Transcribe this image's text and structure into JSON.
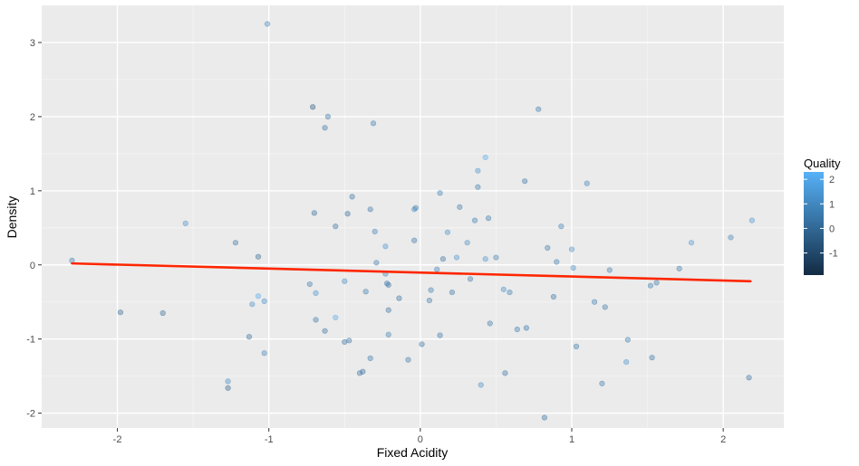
{
  "chart_data": {
    "type": "scatter",
    "title": "",
    "xlabel": "Fixed Acidity",
    "ylabel": "Density",
    "xlim": [
      -2.5,
      2.4
    ],
    "ylim": [
      -2.2,
      3.5
    ],
    "x_ticks": [
      -2,
      -1,
      0,
      1,
      2
    ],
    "y_ticks": [
      -2,
      -1,
      0,
      1,
      2,
      3
    ],
    "x_tick_labels": [
      "-2",
      "-1",
      "0",
      "1",
      "2"
    ],
    "y_tick_labels": [
      "-2",
      "-1",
      "0",
      "1",
      "2",
      "3"
    ],
    "grid": true,
    "legend": {
      "title": "Quality",
      "placement": "right",
      "range": [
        -1.9,
        2.3
      ],
      "ticks": [
        -1,
        0,
        1,
        2
      ],
      "tick_labels": [
        "-1",
        "0",
        "1",
        "2"
      ],
      "color_low": "#132b43",
      "color_high": "#56b1f7"
    },
    "trend_line": {
      "color": "#ff2600",
      "x": [
        -2.3,
        2.18
      ],
      "y": [
        0.02,
        -0.22
      ]
    },
    "points": [
      {
        "x": -2.3,
        "y": 0.06,
        "q": 0.6
      },
      {
        "x": -1.98,
        "y": -0.64,
        "q": 0.0
      },
      {
        "x": -1.7,
        "y": -0.65,
        "q": 0.1
      },
      {
        "x": -1.55,
        "y": 0.56,
        "q": 1.3
      },
      {
        "x": -1.27,
        "y": -1.57,
        "q": 1.0
      },
      {
        "x": -1.27,
        "y": -1.66,
        "q": -0.2
      },
      {
        "x": -1.22,
        "y": 0.3,
        "q": 0.4
      },
      {
        "x": -1.13,
        "y": -0.97,
        "q": 0.2
      },
      {
        "x": -1.11,
        "y": -0.53,
        "q": 1.2
      },
      {
        "x": -1.07,
        "y": 0.11,
        "q": 0.0
      },
      {
        "x": -1.07,
        "y": -0.42,
        "q": 2.0
      },
      {
        "x": -1.03,
        "y": -0.49,
        "q": 1.1
      },
      {
        "x": -1.03,
        "y": -1.19,
        "q": 0.9
      },
      {
        "x": -1.01,
        "y": 3.25,
        "q": 1.0
      },
      {
        "x": -0.73,
        "y": -0.26,
        "q": 0.5
      },
      {
        "x": -0.71,
        "y": 2.13,
        "q": -0.5
      },
      {
        "x": -0.7,
        "y": 0.7,
        "q": 0.1
      },
      {
        "x": -0.69,
        "y": -0.74,
        "q": 0.4
      },
      {
        "x": -0.69,
        "y": -0.38,
        "q": 1.3
      },
      {
        "x": -0.63,
        "y": 1.85,
        "q": 0.3
      },
      {
        "x": -0.63,
        "y": -0.89,
        "q": 0.2
      },
      {
        "x": -0.61,
        "y": 2.0,
        "q": 0.4
      },
      {
        "x": -0.56,
        "y": 0.52,
        "q": 0.3
      },
      {
        "x": -0.56,
        "y": -0.71,
        "q": 2.0
      },
      {
        "x": -0.5,
        "y": -1.04,
        "q": 0.3
      },
      {
        "x": -0.5,
        "y": -0.22,
        "q": 1.0
      },
      {
        "x": -0.48,
        "y": 0.69,
        "q": 0.2
      },
      {
        "x": -0.47,
        "y": -1.02,
        "q": 0.2
      },
      {
        "x": -0.45,
        "y": 0.92,
        "q": 0.4
      },
      {
        "x": -0.4,
        "y": -1.46,
        "q": 0.3
      },
      {
        "x": -0.38,
        "y": -1.44,
        "q": 0.1
      },
      {
        "x": -0.36,
        "y": -0.36,
        "q": 0.6
      },
      {
        "x": -0.33,
        "y": 0.75,
        "q": 0.4
      },
      {
        "x": -0.33,
        "y": -1.26,
        "q": 0.5
      },
      {
        "x": -0.31,
        "y": 1.91,
        "q": 0.6
      },
      {
        "x": -0.3,
        "y": 0.45,
        "q": 0.8
      },
      {
        "x": -0.29,
        "y": 0.03,
        "q": 0.5
      },
      {
        "x": -0.23,
        "y": 0.25,
        "q": 1.4
      },
      {
        "x": -0.23,
        "y": -0.12,
        "q": 0.7
      },
      {
        "x": -0.22,
        "y": -0.25,
        "q": 0.4
      },
      {
        "x": -0.21,
        "y": -0.27,
        "q": 0.4
      },
      {
        "x": -0.21,
        "y": -0.61,
        "q": 0.3
      },
      {
        "x": -0.21,
        "y": -0.94,
        "q": 0.7
      },
      {
        "x": -0.14,
        "y": -0.45,
        "q": 0.3
      },
      {
        "x": -0.08,
        "y": -1.28,
        "q": 0.5
      },
      {
        "x": -0.04,
        "y": 0.75,
        "q": 1.0
      },
      {
        "x": -0.04,
        "y": 0.33,
        "q": 0.4
      },
      {
        "x": -0.03,
        "y": 0.77,
        "q": 0.6
      },
      {
        "x": 0.01,
        "y": -1.07,
        "q": 0.3
      },
      {
        "x": 0.06,
        "y": -0.48,
        "q": 0.5
      },
      {
        "x": 0.07,
        "y": -0.34,
        "q": 0.6
      },
      {
        "x": 0.11,
        "y": -0.06,
        "q": 0.6
      },
      {
        "x": 0.13,
        "y": 0.97,
        "q": 0.7
      },
      {
        "x": 0.13,
        "y": -0.95,
        "q": 0.4
      },
      {
        "x": 0.15,
        "y": 0.08,
        "q": 0.3
      },
      {
        "x": 0.18,
        "y": 0.44,
        "q": 1.2
      },
      {
        "x": 0.21,
        "y": -0.37,
        "q": 0.4
      },
      {
        "x": 0.24,
        "y": 0.1,
        "q": 1.3
      },
      {
        "x": 0.26,
        "y": 0.78,
        "q": 0.5
      },
      {
        "x": 0.31,
        "y": 0.3,
        "q": 1.2
      },
      {
        "x": 0.33,
        "y": -0.19,
        "q": 0.5
      },
      {
        "x": 0.36,
        "y": 0.6,
        "q": 0.6
      },
      {
        "x": 0.38,
        "y": 1.27,
        "q": 1.3
      },
      {
        "x": 0.38,
        "y": 1.05,
        "q": 0.6
      },
      {
        "x": 0.4,
        "y": -1.62,
        "q": 1.2
      },
      {
        "x": 0.43,
        "y": 1.45,
        "q": 2.1
      },
      {
        "x": 0.43,
        "y": 0.08,
        "q": 1.3
      },
      {
        "x": 0.45,
        "y": 0.63,
        "q": 0.6
      },
      {
        "x": 0.46,
        "y": -0.79,
        "q": 0.5
      },
      {
        "x": 0.5,
        "y": 0.1,
        "q": 0.6
      },
      {
        "x": 0.55,
        "y": -0.33,
        "q": 1.1
      },
      {
        "x": 0.56,
        "y": -1.46,
        "q": 0.4
      },
      {
        "x": 0.59,
        "y": -0.37,
        "q": 0.6
      },
      {
        "x": 0.64,
        "y": -0.87,
        "q": 0.5
      },
      {
        "x": 0.69,
        "y": 1.13,
        "q": 0.3
      },
      {
        "x": 0.7,
        "y": -0.85,
        "q": 0.4
      },
      {
        "x": 0.78,
        "y": 2.1,
        "q": 0.5
      },
      {
        "x": 0.82,
        "y": -2.06,
        "q": 0.3
      },
      {
        "x": 0.84,
        "y": 0.23,
        "q": 0.5
      },
      {
        "x": 0.88,
        "y": -0.43,
        "q": 0.4
      },
      {
        "x": 0.9,
        "y": 0.04,
        "q": 0.6
      },
      {
        "x": 0.93,
        "y": 0.52,
        "q": 0.8
      },
      {
        "x": 1.0,
        "y": 0.21,
        "q": 1.2
      },
      {
        "x": 1.01,
        "y": -0.04,
        "q": 1.1
      },
      {
        "x": 1.03,
        "y": -1.1,
        "q": 0.5
      },
      {
        "x": 1.1,
        "y": 1.1,
        "q": 0.8
      },
      {
        "x": 1.15,
        "y": -0.5,
        "q": 0.6
      },
      {
        "x": 1.2,
        "y": -1.6,
        "q": 0.6
      },
      {
        "x": 1.22,
        "y": -0.57,
        "q": 0.5
      },
      {
        "x": 1.25,
        "y": -0.07,
        "q": 0.6
      },
      {
        "x": 1.36,
        "y": -1.31,
        "q": 1.3
      },
      {
        "x": 1.37,
        "y": -1.01,
        "q": 0.6
      },
      {
        "x": 1.52,
        "y": -0.28,
        "q": 0.6
      },
      {
        "x": 1.53,
        "y": -1.25,
        "q": 0.4
      },
      {
        "x": 1.56,
        "y": -0.24,
        "q": 0.5
      },
      {
        "x": 1.71,
        "y": -0.05,
        "q": 0.5
      },
      {
        "x": 1.79,
        "y": 0.3,
        "q": 1.5
      },
      {
        "x": 2.05,
        "y": 0.37,
        "q": 0.8
      },
      {
        "x": 2.17,
        "y": -1.52,
        "q": 0.2
      },
      {
        "x": 2.19,
        "y": 0.6,
        "q": 1.5
      }
    ]
  }
}
